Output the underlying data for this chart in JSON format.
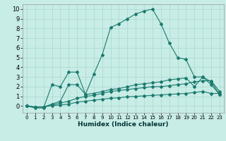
{
  "xlabel": "Humidex (Indice chaleur)",
  "xlim": [
    -0.5,
    23.5
  ],
  "ylim": [
    -0.7,
    10.5
  ],
  "xticks": [
    0,
    1,
    2,
    3,
    4,
    5,
    6,
    7,
    8,
    9,
    10,
    11,
    12,
    13,
    14,
    15,
    16,
    17,
    18,
    19,
    20,
    21,
    22,
    23
  ],
  "yticks": [
    0,
    1,
    2,
    3,
    4,
    5,
    6,
    7,
    8,
    9,
    10
  ],
  "bg_color": "#c8ece6",
  "line_color": "#1a7a6e",
  "grid_color": "#a8d8d0",
  "series": [
    {
      "x": [
        0,
        1,
        2,
        3,
        4,
        5,
        6,
        7,
        8,
        9,
        10,
        11,
        12,
        13,
        14,
        15,
        16,
        17,
        18,
        19,
        20,
        21,
        22,
        23
      ],
      "y": [
        0,
        -0.2,
        -0.2,
        2.2,
        2.0,
        3.5,
        3.5,
        1.2,
        3.3,
        5.3,
        8.1,
        8.5,
        9.0,
        9.5,
        9.8,
        10.0,
        8.5,
        6.5,
        5.0,
        4.8,
        3.0,
        3.0,
        2.5,
        1.2
      ]
    },
    {
      "x": [
        0,
        1,
        2,
        3,
        4,
        5,
        6,
        7,
        8,
        9,
        10,
        11,
        12,
        13,
        14,
        15,
        16,
        17,
        18,
        19,
        20,
        21,
        22,
        23
      ],
      "y": [
        0,
        -0.1,
        -0.1,
        0.2,
        0.5,
        2.2,
        2.2,
        1.2,
        1.3,
        1.5,
        1.7,
        1.8,
        2.0,
        2.2,
        2.3,
        2.4,
        2.5,
        2.7,
        2.8,
        2.9,
        2.0,
        3.0,
        2.2,
        1.2
      ]
    },
    {
      "x": [
        0,
        1,
        2,
        3,
        4,
        5,
        6,
        7,
        8,
        9,
        10,
        11,
        12,
        13,
        14,
        15,
        16,
        17,
        18,
        19,
        20,
        21,
        22,
        23
      ],
      "y": [
        0,
        -0.1,
        -0.1,
        0.1,
        0.3,
        0.5,
        0.8,
        1.0,
        1.1,
        1.3,
        1.5,
        1.6,
        1.7,
        1.8,
        1.9,
        2.0,
        2.0,
        2.1,
        2.2,
        2.3,
        2.5,
        2.6,
        2.6,
        1.5
      ]
    },
    {
      "x": [
        0,
        1,
        2,
        3,
        4,
        5,
        6,
        7,
        8,
        9,
        10,
        11,
        12,
        13,
        14,
        15,
        16,
        17,
        18,
        19,
        20,
        21,
        22,
        23
      ],
      "y": [
        0,
        -0.1,
        -0.1,
        0.05,
        0.1,
        0.2,
        0.4,
        0.5,
        0.6,
        0.7,
        0.8,
        0.85,
        0.95,
        1.0,
        1.05,
        1.1,
        1.15,
        1.2,
        1.25,
        1.3,
        1.4,
        1.5,
        1.3,
        1.3
      ]
    }
  ]
}
